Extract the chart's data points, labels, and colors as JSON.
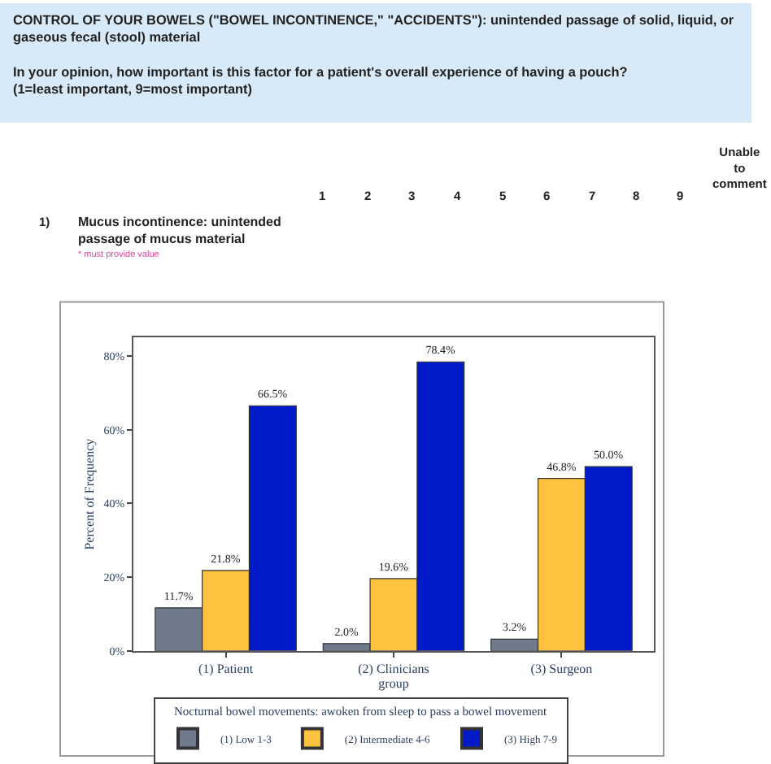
{
  "chart_data": {
    "type": "bar",
    "categories": [
      "(1) Patient",
      "(2) Clinicians",
      "(3) Surgeon"
    ],
    "series": [
      {
        "name": "(1) Low 1-3",
        "color": "#6f7b8c",
        "values": [
          11.7,
          2.0,
          3.2
        ],
        "value_labels": [
          "11.7%",
          "2.0%",
          "3.2%"
        ]
      },
      {
        "name": "(2) Intermediate 4-6",
        "color": "#ffc23e",
        "values": [
          21.8,
          19.6,
          46.8
        ],
        "value_labels": [
          "21.8%",
          "19.6%",
          "46.8%"
        ]
      },
      {
        "name": "(3) High 7-9",
        "color": "#0019c9",
        "values": [
          66.5,
          78.4,
          50.0
        ],
        "value_labels": [
          "66.5%",
          "78.4%",
          "50.0%"
        ]
      }
    ],
    "xlabel": "group",
    "ylabel": "Percent of Frequency",
    "legend_title": "Nocturnal bowel movements: awoken from sleep to pass a bowel movement",
    "legend": "bottom",
    "ylim": [
      0,
      85
    ],
    "yticks": [
      {
        "value": 0,
        "label": "0%"
      },
      {
        "value": 20,
        "label": "20%"
      },
      {
        "value": 40,
        "label": "40%"
      },
      {
        "value": 60,
        "label": "60%"
      },
      {
        "value": 80,
        "label": "80%"
      }
    ],
    "annotations": [
      "CONTROL OF YOUR BOWELS (\"BOWEL INCONTINENCE,\" \"ACCIDENTS\"): unintended passage of solid, liquid, or gaseous fecal (stool) material",
      "In your opinion, how important is this factor for a patient's overall experience of having a pouch? (1=least important, 9=most important)",
      "1",
      "2",
      "3",
      "4",
      "5",
      "6",
      "7",
      "8",
      "9",
      "Unable to comment",
      "1)",
      "Mucus incontinence: unintended passage of mucus material",
      "* must provide value"
    ]
  }
}
